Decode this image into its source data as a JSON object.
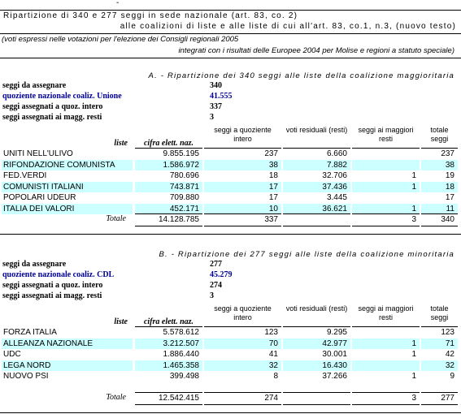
{
  "header": {
    "mark": "-",
    "title_line1": "Ripartizione di 340 e 277 seggi in sede nazionale (art. 83, co. 2)",
    "title_line2": "alle coalizioni di liste e alle liste di cui all'art. 83, co.1, n.3, (nuovo testo)",
    "note_line1": "(voti espressi nelle votazioni per l'elezione dei Consigli regionali 2005",
    "note_line2": "integrati con i risultati delle Europee 2004 per Molise e regioni a statuto speciale)"
  },
  "sections": [
    {
      "title": "A. - Ripartizione dei 340 seggi alle liste della coalizione maggioritaria",
      "info": [
        [
          "seggi da assegnare",
          "340"
        ],
        [
          "quoziente nazionale coaliz. Unione",
          "41.555"
        ],
        [
          "seggi assegnati a quoz. intero",
          "337"
        ],
        [
          "seggi assegnati ai magg. resti",
          "3"
        ]
      ],
      "columns": [
        "liste",
        "cifra elett. naz.",
        "seggi a quoziente intero",
        "voti residuali (resti)",
        "seggi ai maggiori resti",
        "totale seggi"
      ],
      "rows": [
        [
          "UNITI NELL'ULIVO",
          "9.855.195",
          "237",
          "6.660",
          null,
          "237"
        ],
        [
          "RIFONDAZIONE COMUNISTA",
          "1.586.972",
          "38",
          "7.882",
          null,
          "38"
        ],
        [
          "FED.VERDI",
          "780.696",
          "18",
          "32.706",
          "1",
          "19"
        ],
        [
          "COMUNISTI ITALIANI",
          "743.871",
          "17",
          "37.436",
          "1",
          "18"
        ],
        [
          "POPOLARI UDEUR",
          "709.880",
          "17",
          "3.445",
          null,
          "17"
        ],
        [
          "ITALIA DEI VALORI",
          "452.171",
          "10",
          "36.621",
          "1",
          "11"
        ]
      ],
      "total": [
        "Totale",
        "14.128.785",
        "337",
        null,
        "3",
        "340"
      ]
    },
    {
      "title": "B. - Ripartizione dei 277 seggi alle liste della coalizione minoritaria",
      "info": [
        [
          "seggi da assegnare",
          "277"
        ],
        [
          "quoziente nazionale coaliz. CDL",
          "45.279"
        ],
        [
          "seggi assegnati a quoz. intero",
          "274"
        ],
        [
          "seggi assegnati ai magg. resti",
          "3"
        ]
      ],
      "columns": [
        "liste",
        "cifra elett. naz.",
        "seggi a quoziente intero",
        "voti residuali (resti)",
        "seggi ai maggiori resti",
        "totale seggi"
      ],
      "rows": [
        [
          "FORZA ITALIA",
          "5.578.612",
          "123",
          "9.295",
          null,
          "123"
        ],
        [
          "ALLEANZA NAZIONALE",
          "3.212.507",
          "70",
          "42.977",
          "1",
          "71"
        ],
        [
          "UDC",
          "1.886.440",
          "41",
          "30.001",
          "1",
          "42"
        ],
        [
          "LEGA NORD",
          "1.465.358",
          "32",
          "16.430",
          null,
          "32"
        ],
        [
          "NUOVO PSI",
          "399.498",
          "8",
          "37.266",
          "1",
          "9"
        ]
      ],
      "total": [
        "Totale",
        "12.542.415",
        "274",
        null,
        "3",
        "277"
      ]
    }
  ]
}
